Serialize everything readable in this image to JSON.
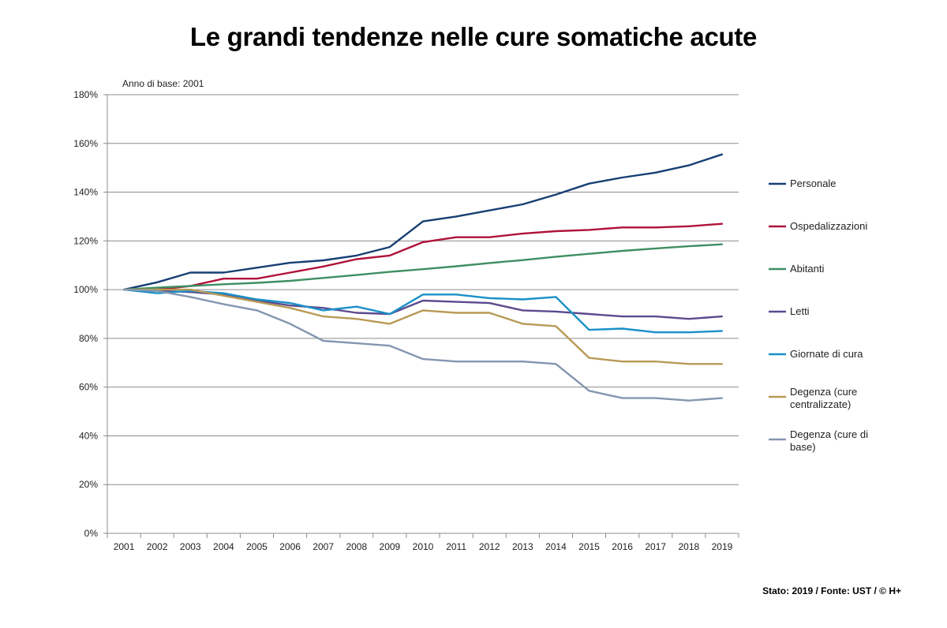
{
  "page": {
    "title": "Le grandi tendenze nelle cure somatiche acute",
    "footer": "Stato: 2019 / Fonte: UST / © H+"
  },
  "chart_data": {
    "type": "line",
    "title": "Le grandi tendenze nelle cure somatiche acute",
    "annotation": "Anno di base: 2001",
    "xlabel": "",
    "ylabel": "",
    "ylim": [
      0,
      180
    ],
    "y_ticks": [
      0,
      20,
      40,
      60,
      80,
      100,
      120,
      140,
      160,
      180
    ],
    "y_tick_labels": [
      "0%",
      "20%",
      "40%",
      "60%",
      "80%",
      "100%",
      "120%",
      "140%",
      "160%",
      "180%"
    ],
    "grid": true,
    "legend_position": "right",
    "x": [
      "2001",
      "2002",
      "2003",
      "2004",
      "2005",
      "2006",
      "2007",
      "2008",
      "2009",
      "2010",
      "2011",
      "2012",
      "2013",
      "2014",
      "2015",
      "2016",
      "2017",
      "2018",
      "2019"
    ],
    "series": [
      {
        "name": "Personale",
        "color": "#173f73",
        "values": [
          100,
          103,
          107,
          107,
          109,
          111,
          112,
          114,
          117.5,
          128,
          130,
          132.5,
          135,
          139,
          143.5,
          146,
          148,
          151,
          155.5
        ]
      },
      {
        "name": "Ospedalizzazioni",
        "color": "#b0123a",
        "values": [
          100,
          100,
          101.5,
          104.5,
          104.5,
          107,
          109.5,
          112.5,
          114,
          119.5,
          121.5,
          121.5,
          123,
          124,
          124.5,
          125.5,
          125.5,
          126,
          127
        ]
      },
      {
        "name": "Abitanti",
        "color": "#3e8f62",
        "values": [
          100,
          100.8,
          101.5,
          102.2,
          102.8,
          103.6,
          104.8,
          106,
          107.3,
          108.4,
          109.6,
          110.9,
          112.1,
          113.5,
          114.7,
          115.9,
          116.9,
          117.8,
          118.6
        ]
      },
      {
        "name": "Letti",
        "color": "#5c4a8f",
        "values": [
          100,
          99.5,
          99,
          98,
          95.5,
          93.5,
          92.5,
          90.5,
          90,
          95.5,
          95,
          94.5,
          91.5,
          91,
          90,
          89,
          89,
          88,
          89
        ]
      },
      {
        "name": "Giornate di cura",
        "color": "#1a90c8",
        "values": [
          100,
          98.5,
          99.5,
          98.5,
          96,
          94.5,
          91.5,
          93,
          90,
          98,
          98,
          96.5,
          96,
          97,
          83.5,
          84,
          82.5,
          82.5,
          83
        ]
      },
      {
        "name": "Degenza (cure centralizzate)",
        "color": "#b89a55",
        "values": [
          100,
          100,
          100,
          97.5,
          95,
          92.5,
          89,
          88,
          86,
          91.5,
          90.5,
          90.5,
          86,
          85,
          72,
          70.5,
          70.5,
          69.5,
          69.5
        ]
      },
      {
        "name": "Degenza (cure di base)",
        "color": "#8496b0",
        "values": [
          100,
          99.5,
          97,
          94,
          91.5,
          86,
          79,
          78,
          77,
          71.5,
          70.5,
          70.5,
          70.5,
          69.5,
          58.5,
          55.5,
          55.5,
          54.5,
          55.5
        ]
      }
    ]
  }
}
